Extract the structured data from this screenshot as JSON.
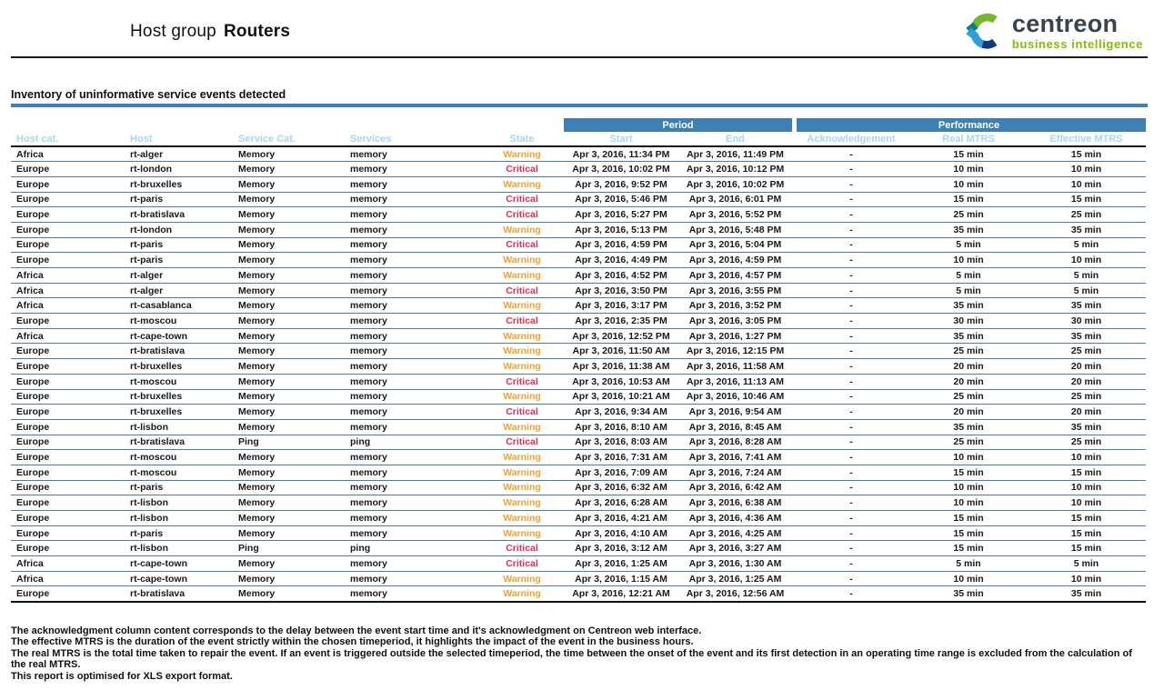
{
  "report": {
    "title_prefix": "Host group",
    "title_name": "Routers",
    "section_title": "Inventory of uninformative service events detected"
  },
  "logo": {
    "brand": "centreon",
    "tagline": "business intelligence",
    "brand_color": "#3a434c",
    "tagline_color": "#84bd00",
    "icon_colors": {
      "green": "#76b82a",
      "teal": "#0b7f85",
      "light_blue": "#2f9fd8",
      "navy": "#14387f"
    }
  },
  "colors": {
    "group_header_bar": "#3c80b4",
    "column_header_text": "#a6d7f0",
    "row_separator": "#447fad",
    "warning": "#f6a02d",
    "critical": "#ee2b52"
  },
  "table": {
    "group_headers": {
      "period": "Period",
      "performance": "Performance"
    },
    "columns": [
      "Host cat.",
      "Host",
      "Service Cat.",
      "Services",
      "State",
      "Start",
      "End",
      "Acknowledgement",
      "Real MTRS",
      "Effective MTRS"
    ],
    "rows": [
      {
        "host_cat": "Africa",
        "host": "rt-alger",
        "service_cat": "Memory",
        "service": "memory",
        "state": "Warning",
        "start": "Apr 3, 2016, 11:34 PM",
        "end": "Apr 3, 2016, 11:49 PM",
        "ack": "-",
        "real_mtrs": "15 min",
        "effective_mtrs": "15 min"
      },
      {
        "host_cat": "Europe",
        "host": "rt-london",
        "service_cat": "Memory",
        "service": "memory",
        "state": "Critical",
        "start": "Apr 3, 2016, 10:02 PM",
        "end": "Apr 3, 2016, 10:12 PM",
        "ack": "-",
        "real_mtrs": "10 min",
        "effective_mtrs": "10 min"
      },
      {
        "host_cat": "Europe",
        "host": "rt-bruxelles",
        "service_cat": "Memory",
        "service": "memory",
        "state": "Warning",
        "start": "Apr 3, 2016, 9:52 PM",
        "end": "Apr 3, 2016, 10:02 PM",
        "ack": "-",
        "real_mtrs": "10 min",
        "effective_mtrs": "10 min"
      },
      {
        "host_cat": "Europe",
        "host": "rt-paris",
        "service_cat": "Memory",
        "service": "memory",
        "state": "Critical",
        "start": "Apr 3, 2016, 5:46 PM",
        "end": "Apr 3, 2016, 6:01 PM",
        "ack": "-",
        "real_mtrs": "15 min",
        "effective_mtrs": "15 min"
      },
      {
        "host_cat": "Europe",
        "host": "rt-bratislava",
        "service_cat": "Memory",
        "service": "memory",
        "state": "Critical",
        "start": "Apr 3, 2016, 5:27 PM",
        "end": "Apr 3, 2016, 5:52 PM",
        "ack": "-",
        "real_mtrs": "25 min",
        "effective_mtrs": "25 min"
      },
      {
        "host_cat": "Europe",
        "host": "rt-london",
        "service_cat": "Memory",
        "service": "memory",
        "state": "Warning",
        "start": "Apr 3, 2016, 5:13 PM",
        "end": "Apr 3, 2016, 5:48 PM",
        "ack": "-",
        "real_mtrs": "35 min",
        "effective_mtrs": "35 min"
      },
      {
        "host_cat": "Europe",
        "host": "rt-paris",
        "service_cat": "Memory",
        "service": "memory",
        "state": "Critical",
        "start": "Apr 3, 2016, 4:59 PM",
        "end": "Apr 3, 2016, 5:04 PM",
        "ack": "-",
        "real_mtrs": "5 min",
        "effective_mtrs": "5 min"
      },
      {
        "host_cat": "Europe",
        "host": "rt-paris",
        "service_cat": "Memory",
        "service": "memory",
        "state": "Warning",
        "start": "Apr 3, 2016, 4:49 PM",
        "end": "Apr 3, 2016, 4:59 PM",
        "ack": "-",
        "real_mtrs": "10 min",
        "effective_mtrs": "10 min"
      },
      {
        "host_cat": "Africa",
        "host": "rt-alger",
        "service_cat": "Memory",
        "service": "memory",
        "state": "Warning",
        "start": "Apr 3, 2016, 4:52 PM",
        "end": "Apr 3, 2016, 4:57 PM",
        "ack": "-",
        "real_mtrs": "5 min",
        "effective_mtrs": "5 min"
      },
      {
        "host_cat": "Africa",
        "host": "rt-alger",
        "service_cat": "Memory",
        "service": "memory",
        "state": "Critical",
        "start": "Apr 3, 2016, 3:50 PM",
        "end": "Apr 3, 2016, 3:55 PM",
        "ack": "-",
        "real_mtrs": "5 min",
        "effective_mtrs": "5 min"
      },
      {
        "host_cat": "Africa",
        "host": "rt-casablanca",
        "service_cat": "Memory",
        "service": "memory",
        "state": "Warning",
        "start": "Apr 3, 2016, 3:17 PM",
        "end": "Apr 3, 2016, 3:52 PM",
        "ack": "-",
        "real_mtrs": "35 min",
        "effective_mtrs": "35 min"
      },
      {
        "host_cat": "Europe",
        "host": "rt-moscou",
        "service_cat": "Memory",
        "service": "memory",
        "state": "Critical",
        "start": "Apr 3, 2016, 2:35 PM",
        "end": "Apr 3, 2016, 3:05 PM",
        "ack": "-",
        "real_mtrs": "30 min",
        "effective_mtrs": "30 min"
      },
      {
        "host_cat": "Africa",
        "host": "rt-cape-town",
        "service_cat": "Memory",
        "service": "memory",
        "state": "Warning",
        "start": "Apr 3, 2016, 12:52 PM",
        "end": "Apr 3, 2016, 1:27 PM",
        "ack": "-",
        "real_mtrs": "35 min",
        "effective_mtrs": "35 min"
      },
      {
        "host_cat": "Europe",
        "host": "rt-bratislava",
        "service_cat": "Memory",
        "service": "memory",
        "state": "Warning",
        "start": "Apr 3, 2016, 11:50 AM",
        "end": "Apr 3, 2016, 12:15 PM",
        "ack": "-",
        "real_mtrs": "25 min",
        "effective_mtrs": "25 min"
      },
      {
        "host_cat": "Europe",
        "host": "rt-bruxelles",
        "service_cat": "Memory",
        "service": "memory",
        "state": "Warning",
        "start": "Apr 3, 2016, 11:38 AM",
        "end": "Apr 3, 2016, 11:58 AM",
        "ack": "-",
        "real_mtrs": "20 min",
        "effective_mtrs": "20 min"
      },
      {
        "host_cat": "Europe",
        "host": "rt-moscou",
        "service_cat": "Memory",
        "service": "memory",
        "state": "Critical",
        "start": "Apr 3, 2016, 10:53 AM",
        "end": "Apr 3, 2016, 11:13 AM",
        "ack": "-",
        "real_mtrs": "20 min",
        "effective_mtrs": "20 min"
      },
      {
        "host_cat": "Europe",
        "host": "rt-bruxelles",
        "service_cat": "Memory",
        "service": "memory",
        "state": "Warning",
        "start": "Apr 3, 2016, 10:21 AM",
        "end": "Apr 3, 2016, 10:46 AM",
        "ack": "-",
        "real_mtrs": "25 min",
        "effective_mtrs": "25 min"
      },
      {
        "host_cat": "Europe",
        "host": "rt-bruxelles",
        "service_cat": "Memory",
        "service": "memory",
        "state": "Critical",
        "start": "Apr 3, 2016, 9:34 AM",
        "end": "Apr 3, 2016, 9:54 AM",
        "ack": "-",
        "real_mtrs": "20 min",
        "effective_mtrs": "20 min"
      },
      {
        "host_cat": "Europe",
        "host": "rt-lisbon",
        "service_cat": "Memory",
        "service": "memory",
        "state": "Warning",
        "start": "Apr 3, 2016, 8:10 AM",
        "end": "Apr 3, 2016, 8:45 AM",
        "ack": "-",
        "real_mtrs": "35 min",
        "effective_mtrs": "35 min"
      },
      {
        "host_cat": "Europe",
        "host": "rt-bratislava",
        "service_cat": "Ping",
        "service": "ping",
        "state": "Critical",
        "start": "Apr 3, 2016, 8:03 AM",
        "end": "Apr 3, 2016, 8:28 AM",
        "ack": "-",
        "real_mtrs": "25 min",
        "effective_mtrs": "25 min"
      },
      {
        "host_cat": "Europe",
        "host": "rt-moscou",
        "service_cat": "Memory",
        "service": "memory",
        "state": "Warning",
        "start": "Apr 3, 2016, 7:31 AM",
        "end": "Apr 3, 2016, 7:41 AM",
        "ack": "-",
        "real_mtrs": "10 min",
        "effective_mtrs": "10 min"
      },
      {
        "host_cat": "Europe",
        "host": "rt-moscou",
        "service_cat": "Memory",
        "service": "memory",
        "state": "Warning",
        "start": "Apr 3, 2016, 7:09 AM",
        "end": "Apr 3, 2016, 7:24 AM",
        "ack": "-",
        "real_mtrs": "15 min",
        "effective_mtrs": "15 min"
      },
      {
        "host_cat": "Europe",
        "host": "rt-paris",
        "service_cat": "Memory",
        "service": "memory",
        "state": "Warning",
        "start": "Apr 3, 2016, 6:32 AM",
        "end": "Apr 3, 2016, 6:42 AM",
        "ack": "-",
        "real_mtrs": "10 min",
        "effective_mtrs": "10 min"
      },
      {
        "host_cat": "Europe",
        "host": "rt-lisbon",
        "service_cat": "Memory",
        "service": "memory",
        "state": "Warning",
        "start": "Apr 3, 2016, 6:28 AM",
        "end": "Apr 3, 2016, 6:38 AM",
        "ack": "-",
        "real_mtrs": "10 min",
        "effective_mtrs": "10 min"
      },
      {
        "host_cat": "Europe",
        "host": "rt-lisbon",
        "service_cat": "Memory",
        "service": "memory",
        "state": "Warning",
        "start": "Apr 3, 2016, 4:21 AM",
        "end": "Apr 3, 2016, 4:36 AM",
        "ack": "-",
        "real_mtrs": "15 min",
        "effective_mtrs": "15 min"
      },
      {
        "host_cat": "Europe",
        "host": "rt-paris",
        "service_cat": "Memory",
        "service": "memory",
        "state": "Warning",
        "start": "Apr 3, 2016, 4:10 AM",
        "end": "Apr 3, 2016, 4:25 AM",
        "ack": "-",
        "real_mtrs": "15 min",
        "effective_mtrs": "15 min"
      },
      {
        "host_cat": "Europe",
        "host": "rt-lisbon",
        "service_cat": "Ping",
        "service": "ping",
        "state": "Critical",
        "start": "Apr 3, 2016, 3:12 AM",
        "end": "Apr 3, 2016, 3:27 AM",
        "ack": "-",
        "real_mtrs": "15 min",
        "effective_mtrs": "15 min"
      },
      {
        "host_cat": "Africa",
        "host": "rt-cape-town",
        "service_cat": "Memory",
        "service": "memory",
        "state": "Critical",
        "start": "Apr 3, 2016, 1:25 AM",
        "end": "Apr 3, 2016, 1:30 AM",
        "ack": "-",
        "real_mtrs": "5 min",
        "effective_mtrs": "5 min"
      },
      {
        "host_cat": "Africa",
        "host": "rt-cape-town",
        "service_cat": "Memory",
        "service": "memory",
        "state": "Warning",
        "start": "Apr 3, 2016, 1:15 AM",
        "end": "Apr 3, 2016, 1:25 AM",
        "ack": "-",
        "real_mtrs": "10 min",
        "effective_mtrs": "10 min"
      },
      {
        "host_cat": "Europe",
        "host": "rt-bratislava",
        "service_cat": "Memory",
        "service": "memory",
        "state": "Warning",
        "start": "Apr 3, 2016, 12:21 AM",
        "end": "Apr 3, 2016, 12:56 AM",
        "ack": "-",
        "real_mtrs": "35 min",
        "effective_mtrs": "35 min"
      }
    ]
  },
  "footnotes": [
    "The acknowledgment column content corresponds to the delay between the event start time and it's acknowledgment on Centreon web interface.",
    "The effective MTRS is the duration of the event strictly within the chosen timeperiod, it highlights the impact of the event in the business hours.",
    "The real MTRS is the total time taken to repair the event. If an event is triggered outside the selected timeperiod, the time between the onset of the event and its first detection in an operating time range is excluded from the calculation of the real MTRS.",
    "This report is optimised for XLS export format."
  ]
}
